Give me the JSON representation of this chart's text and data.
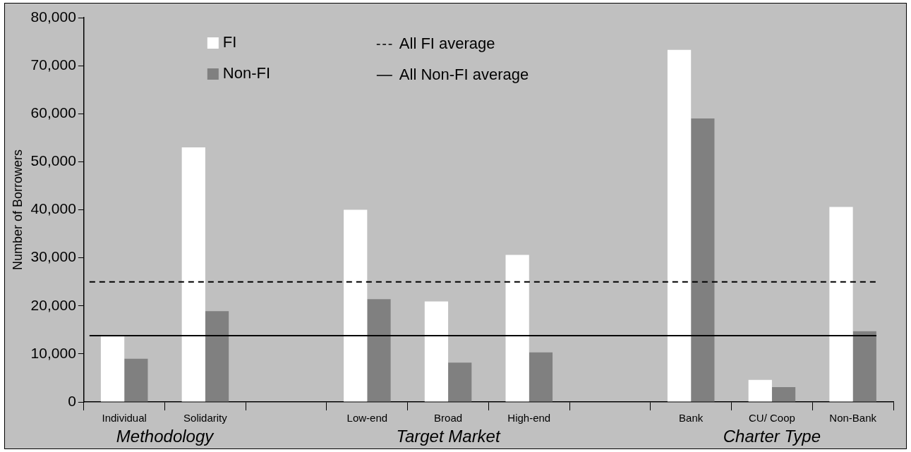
{
  "chart_data": {
    "type": "bar",
    "ylabel": "Number of Borrowers",
    "categories": [
      "Individual",
      "Solidarity",
      null,
      "Low-end",
      "Broad",
      "High-end",
      null,
      "Bank",
      "CU/ Coop",
      "Non-Bank"
    ],
    "series": [
      {
        "name": "FI",
        "color": "#ffffff",
        "values": [
          13600,
          53000,
          null,
          40000,
          20900,
          30600,
          null,
          73300,
          4600,
          40600
        ]
      },
      {
        "name": "Non-FI",
        "color": "#808080",
        "values": [
          9000,
          18900,
          null,
          21400,
          8200,
          10300,
          null,
          59000,
          3100,
          14700
        ]
      }
    ],
    "ylim": [
      0,
      80000
    ],
    "yticks": [
      0,
      {
        "value": 10000,
        "label": "10,000"
      },
      {
        "value": 20000,
        "label": "20,000"
      },
      {
        "value": 30000,
        "label": "30,000"
      },
      {
        "value": 40000,
        "label": "40,000"
      },
      {
        "value": 50000,
        "label": "50,000"
      },
      {
        "value": 60000,
        "label": "60,000"
      },
      {
        "value": 70000,
        "label": "70,000"
      },
      {
        "value": 80000,
        "label": "80,000"
      }
    ],
    "ref_lines": [
      {
        "axis": "y",
        "value": 25000,
        "label": "All FI average",
        "color": "#000000",
        "line_style": "dashed"
      },
      {
        "axis": "y",
        "value": 13800,
        "label": "All Non-FI average",
        "color": "#000000",
        "line_style": "solid"
      }
    ],
    "annotations": [
      "Methodology",
      "Target Market",
      "Charter Type"
    ],
    "grid": false,
    "legend": "top left"
  }
}
